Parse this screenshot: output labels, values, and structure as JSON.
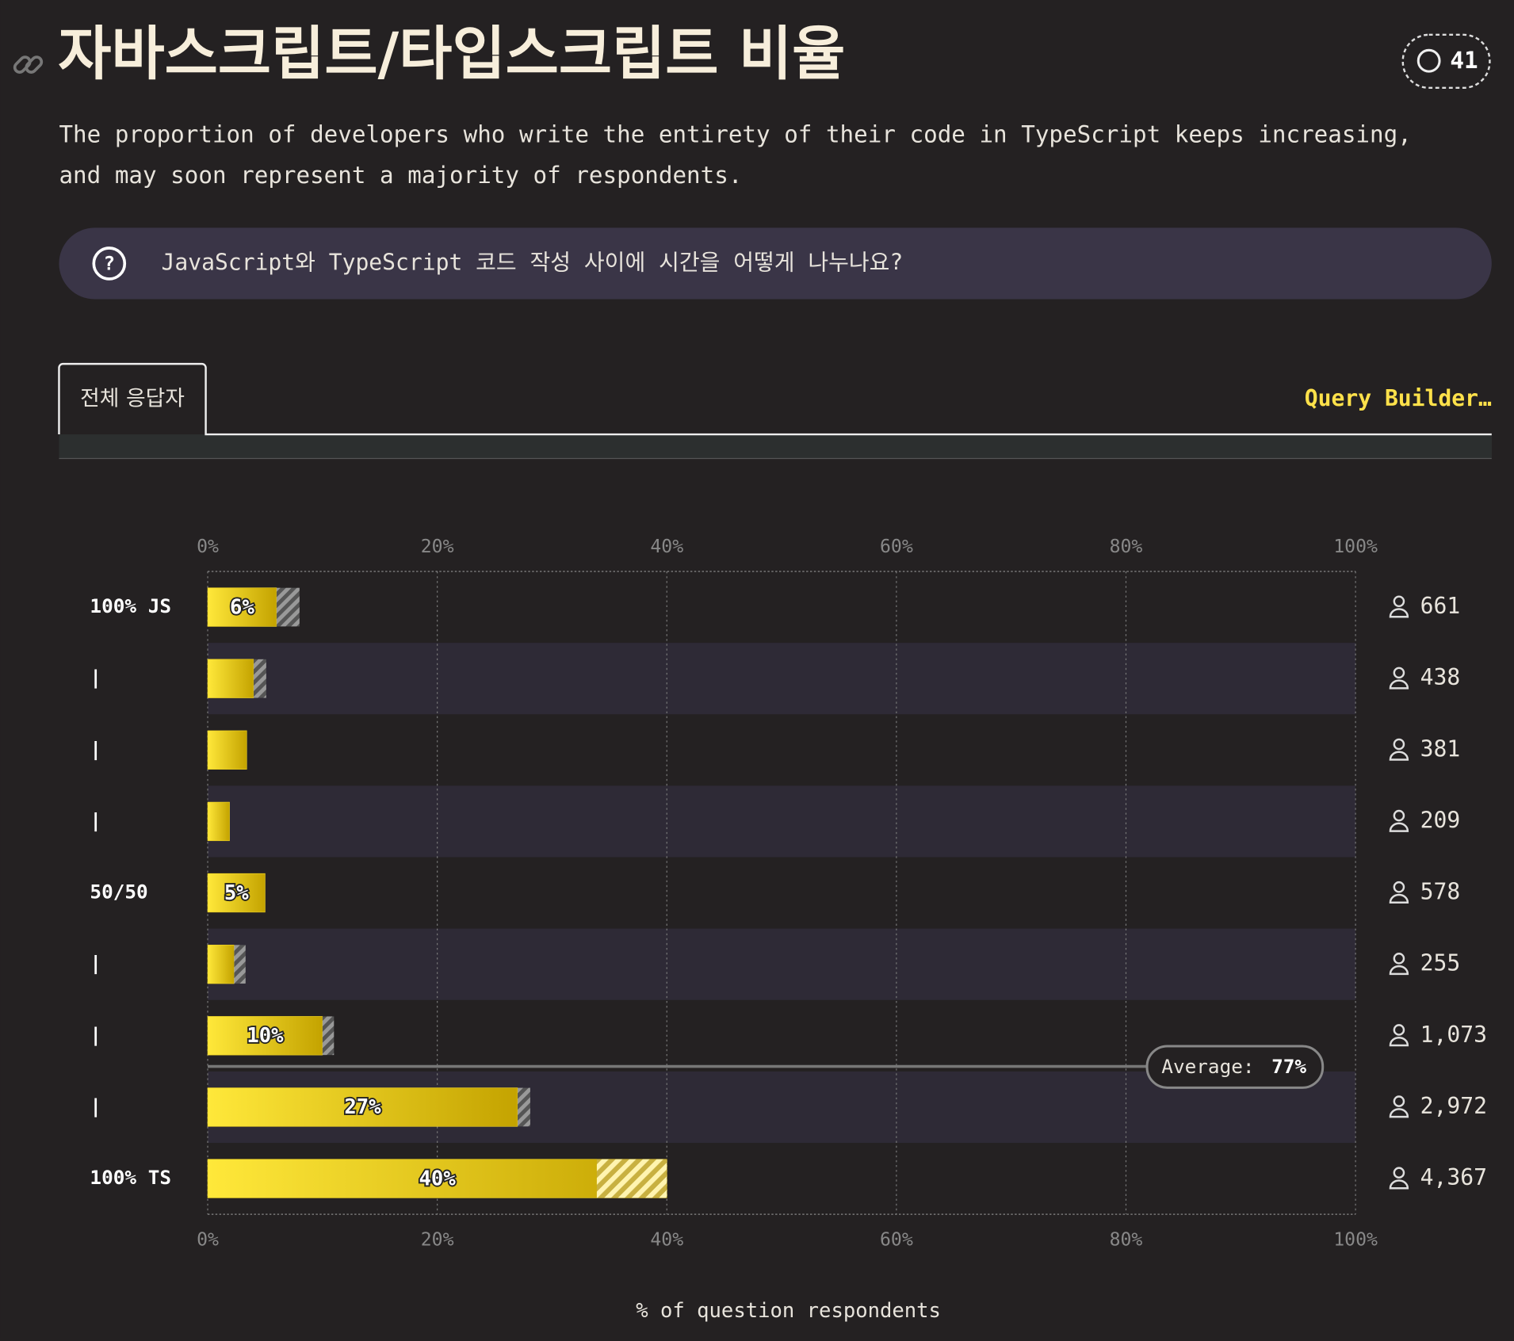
{
  "header": {
    "title": "자바스크립트/타입스크립트 비율",
    "comments": "41",
    "description": [
      "The proportion of developers who write the entirety of their code in TypeScript keeps increasing,",
      "and may soon represent a majority of respondents."
    ],
    "question": "JavaScript와 TypeScript 코드 작성 사이에 시간을 어떻게 나누나요?"
  },
  "tabs": {
    "active": "전체 응답자",
    "action": "Query Builder…"
  },
  "chart_data": {
    "type": "bar",
    "orientation": "horizontal",
    "categories": [
      "100% JS",
      "|",
      "|",
      "|",
      "50/50",
      "|",
      "|",
      "|",
      "100% TS"
    ],
    "values": [
      6,
      4,
      3.4,
      1.9,
      5,
      2.3,
      10,
      27,
      40
    ],
    "value_labels": [
      "6%",
      null,
      null,
      null,
      "5%",
      null,
      "10%",
      "27%",
      "40%"
    ],
    "hatch": [
      [
        6,
        8
      ],
      [
        4,
        5.1
      ],
      null,
      null,
      null,
      [
        2.3,
        3.3
      ],
      [
        10,
        11
      ],
      [
        27,
        28.1
      ],
      [
        33.9,
        40
      ]
    ],
    "color": "#f2d624",
    "respondents": {
      "values": [
        661,
        438,
        381,
        209,
        578,
        255,
        1073,
        2972,
        4367
      ],
      "value_labels": [
        "661",
        "438",
        "381",
        "209",
        "578",
        "255",
        "1,073",
        "2,972",
        "4,367"
      ]
    },
    "average": {
      "label": "Average:",
      "value": 77,
      "value_label": "77%"
    },
    "xlim": [
      0,
      100
    ],
    "xticks": [
      {
        "value": 0,
        "label": "0%"
      },
      {
        "value": 20,
        "label": "20%"
      },
      {
        "value": 40,
        "label": "40%"
      },
      {
        "value": 60,
        "label": "60%"
      },
      {
        "value": 80,
        "label": "80%"
      },
      {
        "value": 100,
        "label": "100%"
      }
    ],
    "grid": true,
    "xlabel": "% of question respondents"
  }
}
